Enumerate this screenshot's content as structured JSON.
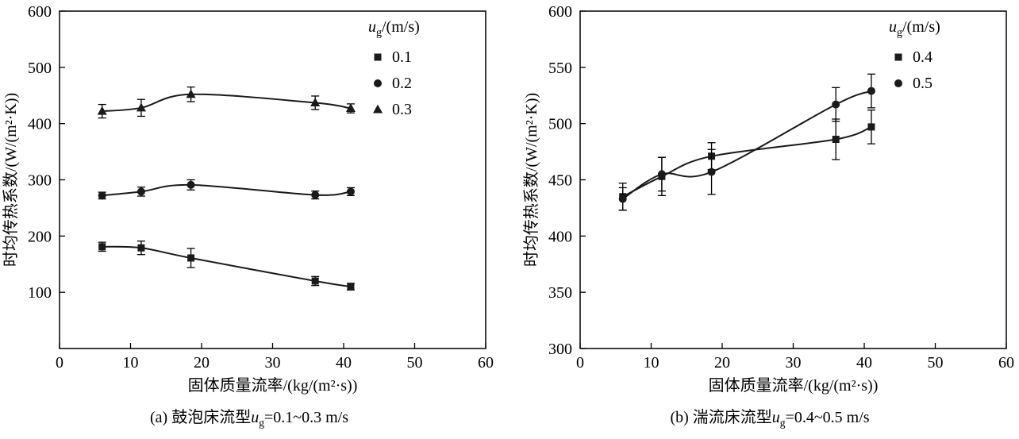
{
  "page": {
    "background": "#ffffff",
    "line_color": "#000000"
  },
  "chart_data": [
    {
      "type": "scatter",
      "title": "",
      "xlabel": "固体质量流率/(kg/(m²·s))",
      "ylabel": "时均传热系数/(W/(m²·K))",
      "xlim": [
        0,
        60
      ],
      "ylim": [
        0,
        600
      ],
      "xticks": [
        0,
        10,
        20,
        30,
        40,
        50,
        60
      ],
      "yticks": [
        100,
        200,
        300,
        400,
        500,
        600
      ],
      "grid": false,
      "legend": {
        "position": "top-right",
        "title": {
          "pre": "u",
          "sub": "g",
          "post": "/(m/s)"
        }
      },
      "series": [
        {
          "label": "0.1",
          "marker": "square",
          "color": "#1a1a1a",
          "x": [
            6,
            11.5,
            18.5,
            36,
            41
          ],
          "y": [
            181,
            179,
            161,
            120,
            110
          ],
          "yerr": [
            8,
            12,
            17,
            8,
            6
          ]
        },
        {
          "label": "0.2",
          "marker": "circle",
          "color": "#1a1a1a",
          "x": [
            6,
            11.5,
            18.5,
            36,
            41
          ],
          "y": [
            272,
            279,
            291,
            273,
            279
          ],
          "yerr": [
            6,
            8,
            9,
            7,
            7
          ]
        },
        {
          "label": "0.3",
          "marker": "triangle",
          "color": "#1a1a1a",
          "x": [
            6,
            11.5,
            18.5,
            36,
            41
          ],
          "y": [
            422,
            428,
            452,
            437,
            427
          ],
          "yerr": [
            12,
            15,
            13,
            12,
            8
          ]
        }
      ],
      "caption": {
        "pre": "(a) 鼓泡床流型",
        "italic": "u",
        "sub": "g",
        "post": "=0.1~0.3 m/s"
      }
    },
    {
      "type": "scatter",
      "title": "",
      "xlabel": "固体质量流率/(kg/(m²·s))",
      "ylabel": "时均传热系数/(W/(m²·K))",
      "xlim": [
        0,
        60
      ],
      "ylim": [
        300,
        600
      ],
      "xticks": [
        0,
        10,
        20,
        30,
        40,
        50,
        60
      ],
      "yticks": [
        300,
        350,
        400,
        450,
        500,
        550,
        600
      ],
      "grid": false,
      "legend": {
        "position": "top-right",
        "title": {
          "pre": "u",
          "sub": "g",
          "post": "/(m/s)"
        }
      },
      "series": [
        {
          "label": "0.4",
          "marker": "square",
          "color": "#1a1a1a",
          "x": [
            6,
            11.5,
            18.5,
            36,
            41
          ],
          "y": [
            435,
            453,
            471,
            486,
            497
          ],
          "yerr": [
            12,
            17,
            12,
            18,
            15
          ]
        },
        {
          "label": "0.5",
          "marker": "circle",
          "color": "#1a1a1a",
          "x": [
            6,
            11.5,
            18.5,
            36,
            41
          ],
          "y": [
            433,
            455,
            457,
            517,
            529
          ],
          "yerr": [
            10,
            15,
            20,
            15,
            15
          ]
        }
      ],
      "caption": {
        "pre": "(b) 湍流床流型",
        "italic": "u",
        "sub": "g",
        "post": "=0.4~0.5 m/s"
      }
    }
  ]
}
